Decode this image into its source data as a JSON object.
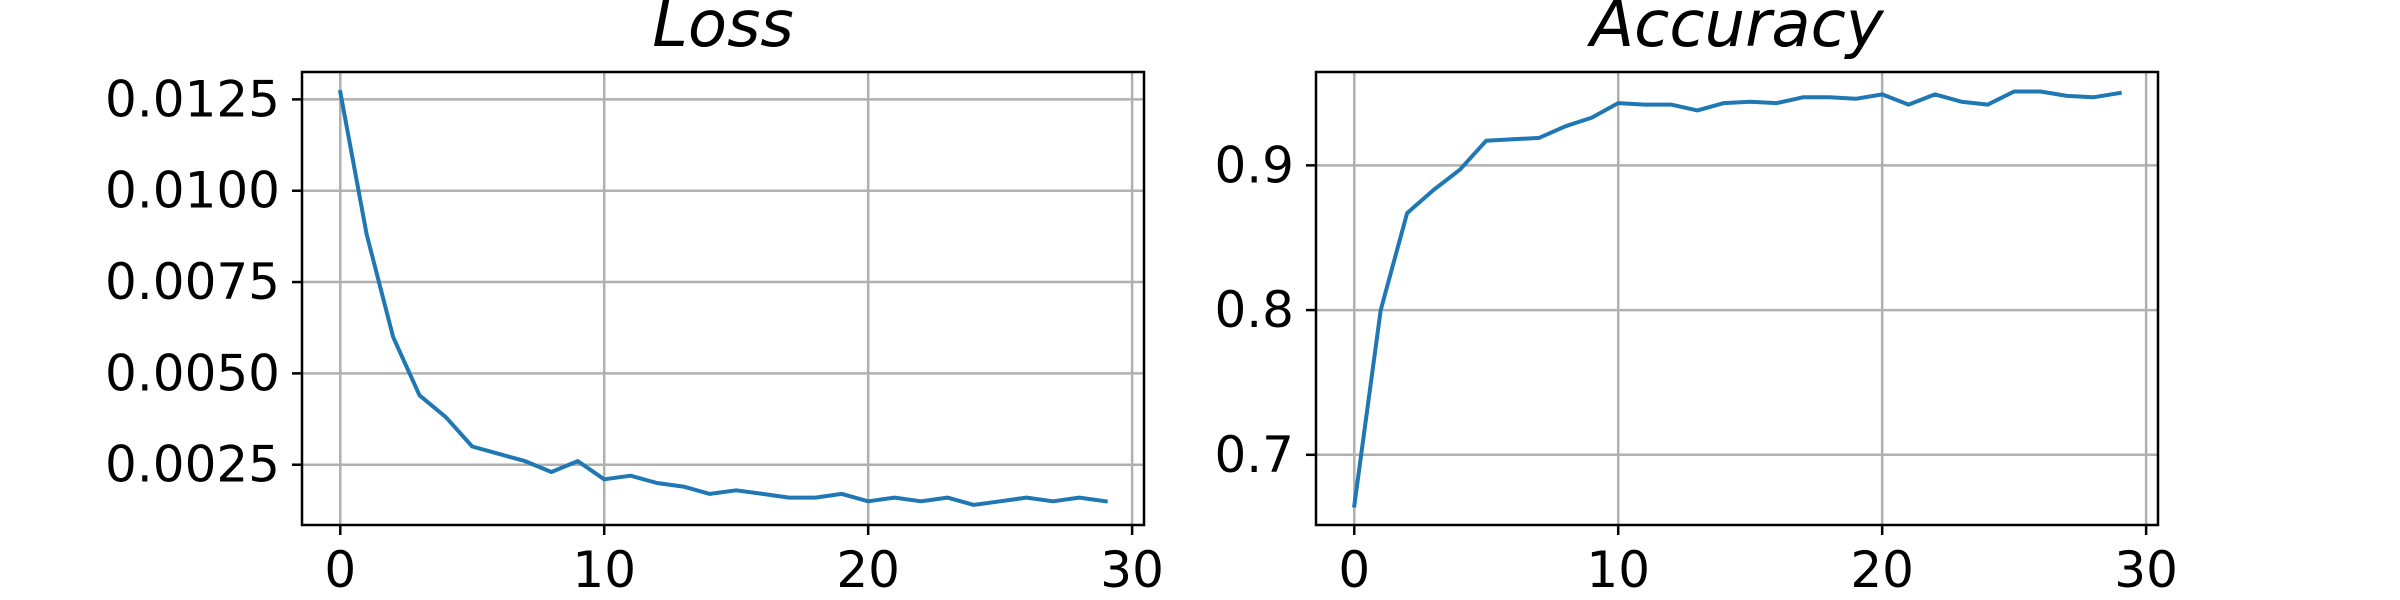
{
  "chart_data": [
    {
      "type": "line",
      "title": "Loss",
      "xlabel": "",
      "ylabel": "",
      "grid": true,
      "xlim": [
        -1.45,
        30.45
      ],
      "ylim": [
        0.00085,
        0.01325
      ],
      "xticks": [
        0,
        10,
        20,
        30
      ],
      "xtick_labels": [
        "0",
        "10",
        "20",
        "30"
      ],
      "yticks": [
        0.0025,
        0.005,
        0.0075,
        0.01,
        0.0125
      ],
      "ytick_labels": [
        "0.0025",
        "0.0050",
        "0.0075",
        "0.0100",
        "0.0125"
      ],
      "series": [
        {
          "color": "#1f77b4",
          "x": [
            0,
            1,
            2,
            3,
            4,
            5,
            6,
            7,
            8,
            9,
            10,
            11,
            12,
            13,
            14,
            15,
            16,
            17,
            18,
            19,
            20,
            21,
            22,
            23,
            24,
            25,
            26,
            27,
            28,
            29
          ],
          "y": [
            0.0127,
            0.0088,
            0.006,
            0.0044,
            0.0038,
            0.003,
            0.0028,
            0.0026,
            0.0023,
            0.0026,
            0.0021,
            0.0022,
            0.002,
            0.0019,
            0.0017,
            0.0018,
            0.0017,
            0.0016,
            0.0016,
            0.0017,
            0.0015,
            0.0016,
            0.0015,
            0.0016,
            0.0014,
            0.0015,
            0.0016,
            0.0015,
            0.0016,
            0.0015
          ]
        }
      ]
    },
    {
      "type": "line",
      "title": "Accuracy",
      "xlabel": "",
      "ylabel": "",
      "grid": true,
      "xlim": [
        -1.45,
        30.45
      ],
      "ylim": [
        0.6515,
        0.9645
      ],
      "xticks": [
        0,
        10,
        20,
        30
      ],
      "xtick_labels": [
        "0",
        "10",
        "20",
        "30"
      ],
      "yticks": [
        0.7,
        0.8,
        0.9
      ],
      "ytick_labels": [
        "0.7",
        "0.8",
        "0.9"
      ],
      "series": [
        {
          "color": "#1f77b4",
          "x": [
            0,
            1,
            2,
            3,
            4,
            5,
            6,
            7,
            8,
            9,
            10,
            11,
            12,
            13,
            14,
            15,
            16,
            17,
            18,
            19,
            20,
            21,
            22,
            23,
            24,
            25,
            26,
            27,
            28,
            29
          ],
          "y": [
            0.665,
            0.8,
            0.867,
            0.883,
            0.897,
            0.917,
            0.918,
            0.919,
            0.927,
            0.933,
            0.943,
            0.942,
            0.942,
            0.938,
            0.943,
            0.944,
            0.943,
            0.947,
            0.947,
            0.946,
            0.949,
            0.942,
            0.949,
            0.944,
            0.942,
            0.951,
            0.951,
            0.948,
            0.947,
            0.95
          ]
        }
      ]
    }
  ]
}
